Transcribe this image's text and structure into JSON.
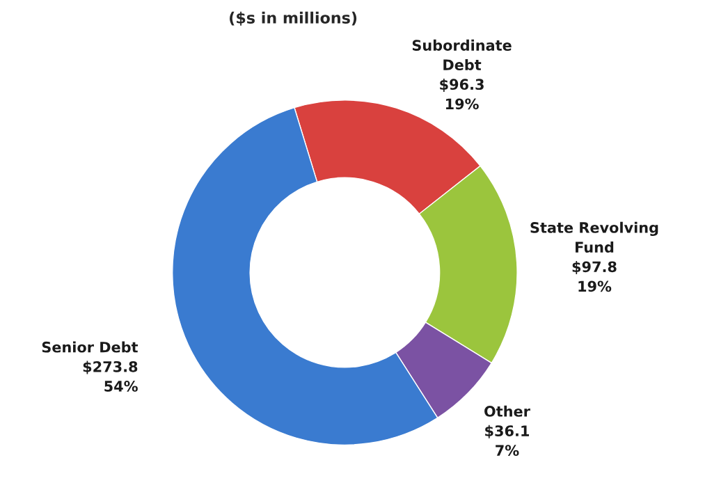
{
  "chart_data": {
    "type": "donut",
    "title": "($s in millions)",
    "categories": [
      "Subordinate\nDebt",
      "State Revolving\nFund",
      "Other",
      "Senior Debt"
    ],
    "values": [
      96.3,
      97.8,
      36.1,
      273.8
    ],
    "value_labels": [
      "$96.3\n19%",
      "$97.8\n19%",
      "$36.1\n7%",
      "$273.8\n54%"
    ],
    "colors": [
      "#d9413e",
      "#9bc53d",
      "#7b52a3",
      "#3a7bd0"
    ]
  }
}
